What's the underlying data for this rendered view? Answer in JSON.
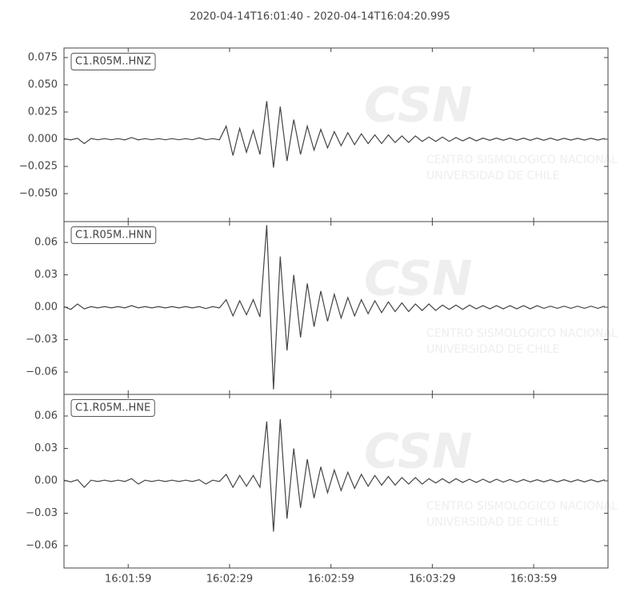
{
  "header": {
    "title": "2020-04-14T16:01:40  -  2020-04-14T16:04:20.995"
  },
  "watermark": {
    "logo": "CSN",
    "line1": "CENTRO SISMOLOGICO NACIONAL",
    "line2": "UNIVERSIDAD DE CHILE"
  },
  "chart_data": [
    {
      "type": "line",
      "label": "C1.R05M..HNZ",
      "color": "#444444",
      "x": [
        0,
        2,
        4,
        6,
        8,
        10,
        12,
        14,
        16,
        18,
        20,
        22,
        24,
        26,
        28,
        30,
        32,
        34,
        36,
        38,
        40,
        42,
        44,
        46,
        48,
        50,
        52,
        54,
        56,
        58,
        60,
        62,
        64,
        66,
        68,
        70,
        72,
        74,
        76,
        78,
        80,
        82,
        84,
        86,
        88,
        90,
        92,
        94,
        96,
        98,
        100,
        102,
        104,
        106,
        108,
        110,
        112,
        114,
        116,
        118,
        120,
        122,
        124,
        126,
        128,
        130,
        132,
        134,
        136,
        138,
        140,
        142,
        144,
        146,
        148,
        150,
        152,
        154,
        156,
        158,
        160
      ],
      "values": [
        0.0005,
        -0.0006,
        0.0008,
        -0.004,
        0.0006,
        -0.0005,
        0.0005,
        -0.0005,
        0.0005,
        -0.0006,
        0.0015,
        -0.0006,
        0.0005,
        -0.0005,
        0.0005,
        -0.0005,
        0.0005,
        -0.0005,
        0.0005,
        -0.0005,
        0.0012,
        -0.0005,
        0.0005,
        -0.0005,
        0.012,
        -0.015,
        0.01,
        -0.012,
        0.008,
        -0.014,
        0.035,
        -0.026,
        0.03,
        -0.02,
        0.018,
        -0.014,
        0.012,
        -0.01,
        0.009,
        -0.008,
        0.007,
        -0.006,
        0.006,
        -0.005,
        0.005,
        -0.004,
        0.004,
        -0.004,
        0.004,
        -0.003,
        0.003,
        -0.003,
        0.003,
        -0.002,
        0.002,
        -0.002,
        0.002,
        -0.002,
        0.0015,
        -0.0015,
        0.0015,
        -0.0015,
        0.001,
        -0.001,
        0.001,
        -0.001,
        0.001,
        -0.001,
        0.001,
        -0.001,
        0.001,
        -0.001,
        0.001,
        -0.001,
        0.0008,
        -0.0008,
        0.0008,
        -0.0008,
        0.0008,
        -0.0008,
        0.0008
      ],
      "ylim": [
        -0.0757,
        0.0838
      ],
      "yticks": [
        {
          "value": 0.075,
          "label": "0.075"
        },
        {
          "value": 0.05,
          "label": "0.050"
        },
        {
          "value": 0.025,
          "label": "0.025"
        },
        {
          "value": 0,
          "label": "0.000"
        },
        {
          "value": -0.025,
          "label": "−0.025"
        },
        {
          "value": -0.05,
          "label": "−0.050"
        }
      ],
      "xlim": [
        0,
        160.995
      ]
    },
    {
      "type": "line",
      "label": "C1.R05M..HNN",
      "color": "#444444",
      "x": [
        0,
        2,
        4,
        6,
        8,
        10,
        12,
        14,
        16,
        18,
        20,
        22,
        24,
        26,
        28,
        30,
        32,
        34,
        36,
        38,
        40,
        42,
        44,
        46,
        48,
        50,
        52,
        54,
        56,
        58,
        60,
        62,
        64,
        66,
        68,
        70,
        72,
        74,
        76,
        78,
        80,
        82,
        84,
        86,
        88,
        90,
        92,
        94,
        96,
        98,
        100,
        102,
        104,
        106,
        108,
        110,
        112,
        114,
        116,
        118,
        120,
        122,
        124,
        126,
        128,
        130,
        132,
        134,
        136,
        138,
        140,
        142,
        144,
        146,
        148,
        150,
        152,
        154,
        156,
        158,
        160
      ],
      "values": [
        0.0006,
        -0.002,
        0.003,
        -0.0015,
        0.0006,
        -0.0006,
        0.0006,
        -0.0006,
        0.0006,
        -0.0006,
        0.0015,
        -0.0006,
        0.0006,
        -0.0006,
        0.0006,
        -0.0006,
        0.0006,
        -0.0006,
        0.0006,
        -0.0006,
        0.0006,
        -0.0012,
        0.0006,
        -0.0006,
        0.007,
        -0.008,
        0.006,
        -0.007,
        0.007,
        -0.009,
        0.076,
        -0.076,
        0.047,
        -0.04,
        0.03,
        -0.028,
        0.022,
        -0.018,
        0.015,
        -0.013,
        0.012,
        -0.01,
        0.009,
        -0.008,
        0.007,
        -0.006,
        0.006,
        -0.005,
        0.005,
        -0.004,
        0.004,
        -0.004,
        0.003,
        -0.003,
        0.003,
        -0.003,
        0.002,
        -0.002,
        0.002,
        -0.002,
        0.002,
        -0.0015,
        0.0015,
        -0.0015,
        0.0015,
        -0.0015,
        0.0015,
        -0.0015,
        0.0015,
        -0.0015,
        0.0015,
        -0.001,
        0.001,
        -0.001,
        0.001,
        -0.001,
        0.001,
        -0.001,
        0.001,
        -0.001,
        0.001
      ],
      "ylim": [
        -0.0807,
        0.0793
      ],
      "yticks": [
        0.06,
        0.03,
        {
          "value": 0,
          "label": "0.00"
        },
        {
          "value": -0.03,
          "label": "−0.03"
        },
        {
          "value": -0.06,
          "label": "−0.06"
        }
      ],
      "xlim": [
        0,
        160.995
      ]
    },
    {
      "type": "line",
      "label": "C1.R05M..HNE",
      "color": "#444444",
      "x": [
        0,
        2,
        4,
        6,
        8,
        10,
        12,
        14,
        16,
        18,
        20,
        22,
        24,
        26,
        28,
        30,
        32,
        34,
        36,
        38,
        40,
        42,
        44,
        46,
        48,
        50,
        52,
        54,
        56,
        58,
        60,
        62,
        64,
        66,
        68,
        70,
        72,
        74,
        76,
        78,
        80,
        82,
        84,
        86,
        88,
        90,
        92,
        94,
        96,
        98,
        100,
        102,
        104,
        106,
        108,
        110,
        112,
        114,
        116,
        118,
        120,
        122,
        124,
        126,
        128,
        130,
        132,
        134,
        136,
        138,
        140,
        142,
        144,
        146,
        148,
        150,
        152,
        154,
        156,
        158,
        160
      ],
      "values": [
        0.0006,
        -0.001,
        0.001,
        -0.006,
        0.0006,
        -0.0006,
        0.0006,
        -0.0006,
        0.0006,
        -0.0006,
        0.002,
        -0.003,
        0.0006,
        -0.0006,
        0.0006,
        -0.0006,
        0.0006,
        -0.0006,
        0.0006,
        -0.0006,
        0.001,
        -0.003,
        0.0006,
        -0.0006,
        0.006,
        -0.006,
        0.005,
        -0.005,
        0.005,
        -0.006,
        0.055,
        -0.047,
        0.057,
        -0.035,
        0.03,
        -0.025,
        0.02,
        -0.016,
        0.013,
        -0.011,
        0.01,
        -0.009,
        0.008,
        -0.007,
        0.006,
        -0.005,
        0.005,
        -0.004,
        0.004,
        -0.004,
        0.003,
        -0.003,
        0.003,
        -0.003,
        0.002,
        -0.002,
        0.002,
        -0.002,
        0.002,
        -0.0015,
        0.0015,
        -0.0015,
        0.0015,
        -0.0015,
        0.0015,
        -0.0012,
        0.0012,
        -0.0012,
        0.0012,
        -0.001,
        0.001,
        -0.001,
        0.001,
        -0.001,
        0.001,
        -0.001,
        0.001,
        -0.001,
        0.001,
        -0.001,
        0.001
      ],
      "ylim": [
        -0.0807,
        0.08
      ],
      "yticks": [
        0.06,
        0.03,
        {
          "value": 0,
          "label": "0.00"
        },
        {
          "value": -0.03,
          "label": "−0.03"
        },
        {
          "value": -0.06,
          "label": "−0.06"
        }
      ],
      "xlim": [
        0,
        160.995
      ],
      "xticks": [
        {
          "value": 19,
          "label": "16:01:59"
        },
        {
          "value": 49,
          "label": "16:02:29"
        },
        {
          "value": 79,
          "label": "16:02:59"
        },
        {
          "value": 109,
          "label": "16:03:29"
        },
        {
          "value": 139,
          "label": "16:03:59"
        }
      ]
    }
  ]
}
